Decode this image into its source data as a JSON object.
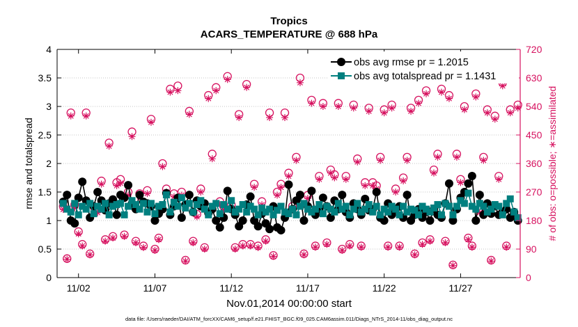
{
  "chart_data": {
    "type": "line",
    "title": "Tropics",
    "subtitle": "ACARS_TEMPERATURE @ 688 hPa",
    "xlabel": "Nov.01,2014 00:00:00 start",
    "ylabel": "rmse and totalspread",
    "y2label": "# of obs: o=possible; ∗=assimilated",
    "footer": "data file: /Users/raeder/DAI/ATM_forcXX/CAM6_setup/f.e21.FHIST_BGC.f09_025.CAM6assim.011/Diags_NTrS_2014-11/obs_diag_output.nc",
    "xlim": [
      0.6,
      30.9
    ],
    "ylim": [
      0,
      4
    ],
    "y2lim": [
      0,
      720
    ],
    "x_ticks": [
      2,
      7,
      12,
      17,
      22,
      27
    ],
    "x_tick_labels": [
      "11/02",
      "11/07",
      "11/12",
      "11/17",
      "11/22",
      "11/27"
    ],
    "y_ticks": [
      0,
      0.5,
      1,
      1.5,
      2,
      2.5,
      3,
      3.5,
      4
    ],
    "y_tick_labels": [
      "0",
      "0.5",
      "1",
      "1.5",
      "2",
      "2.5",
      "3",
      "3.5",
      "4"
    ],
    "y2_ticks": [
      0,
      90,
      180,
      270,
      360,
      450,
      540,
      630,
      720
    ],
    "y2_tick_labels": [
      "0",
      "90",
      "180",
      "270",
      "360",
      "450",
      "540",
      "630",
      "720"
    ],
    "grid": "horizontal dotted",
    "legend": {
      "position": "top-right",
      "entries": [
        "obs avg rmse pr = 1.2015",
        "obs avg totalspread pr = 1.1431"
      ]
    },
    "colors": {
      "rmse": "#000000",
      "totalspread": "#007f7f",
      "obs": "#d6115f"
    },
    "times": [
      1.0,
      1.25,
      1.5,
      1.75,
      2.0,
      2.25,
      2.5,
      2.75,
      3.0,
      3.25,
      3.5,
      3.75,
      4.0,
      4.25,
      4.5,
      4.75,
      5.0,
      5.25,
      5.5,
      5.75,
      6.0,
      6.25,
      6.5,
      6.75,
      7.0,
      7.25,
      7.5,
      7.75,
      8.0,
      8.25,
      8.5,
      8.75,
      9.0,
      9.25,
      9.5,
      9.75,
      10.0,
      10.25,
      10.5,
      10.75,
      11.0,
      11.25,
      11.5,
      11.75,
      12.0,
      12.25,
      12.5,
      12.75,
      13.0,
      13.25,
      13.5,
      13.75,
      14.0,
      14.25,
      14.5,
      14.75,
      15.0,
      15.25,
      15.5,
      15.75,
      16.0,
      16.25,
      16.5,
      16.75,
      17.0,
      17.25,
      17.5,
      17.75,
      18.0,
      18.25,
      18.5,
      18.75,
      19.0,
      19.25,
      19.5,
      19.75,
      20.0,
      20.25,
      20.5,
      20.75,
      21.0,
      21.25,
      21.5,
      21.75,
      22.0,
      22.25,
      22.5,
      22.75,
      23.0,
      23.25,
      23.5,
      23.75,
      24.0,
      24.25,
      24.5,
      24.75,
      25.0,
      25.25,
      25.5,
      25.75,
      26.0,
      26.25,
      26.5,
      26.75,
      27.0,
      27.25,
      27.5,
      27.75,
      28.0,
      28.25,
      28.5,
      28.75,
      29.0,
      29.25,
      29.5,
      29.75,
      30.0,
      30.25,
      30.5,
      30.75
    ],
    "series": [
      {
        "name": "obs avg rmse pr = 1.2015",
        "axis": "left",
        "values": [
          1.33,
          1.45,
          1.0,
          0.95,
          1.4,
          1.68,
          1.35,
          1.05,
          1.25,
          1.5,
          1.35,
          1.18,
          1.3,
          1.37,
          1.1,
          1.45,
          1.4,
          1.62,
          1.3,
          1.2,
          1.45,
          1.33,
          1.3,
          1.25,
          1.0,
          1.12,
          1.2,
          1.48,
          1.1,
          1.25,
          1.4,
          1.05,
          1.28,
          1.45,
          1.15,
          1.35,
          1.25,
          1.3,
          1.13,
          1.2,
          1.0,
          0.88,
          1.05,
          1.52,
          1.2,
          1.1,
          0.9,
          1.0,
          1.28,
          1.42,
          1.0,
          0.9,
          1.12,
          0.95,
          0.85,
          1.25,
          0.88,
          0.83,
          1.05,
          1.63,
          1.2,
          1.35,
          1.45,
          1.0,
          1.25,
          1.52,
          1.1,
          1.2,
          1.4,
          1.25,
          1.05,
          1.35,
          1.2,
          1.45,
          1.15,
          1.05,
          1.3,
          1.2,
          1.1,
          1.38,
          1.18,
          1.2,
          1.5,
          1.05,
          1.0,
          1.3,
          1.1,
          1.2,
          1.25,
          1.05,
          1.45,
          1.0,
          1.1,
          1.2,
          1.05,
          1.15,
          1.0,
          1.2,
          1.1,
          1.05,
          1.3,
          1.65,
          1.0,
          1.2,
          1.4,
          1.5,
          1.65,
          1.78,
          1.0,
          1.45,
          1.1,
          1.3,
          1.12,
          1.25,
          1.1,
          1.15,
          1.2,
          1.05,
          1.15,
          1.0
        ]
      },
      {
        "name": "obs avg totalspread pr = 1.1431",
        "axis": "left",
        "values": [
          1.3,
          1.2,
          1.15,
          1.3,
          1.1,
          1.25,
          1.2,
          1.3,
          1.12,
          1.25,
          1.2,
          1.3,
          1.1,
          1.25,
          1.28,
          1.3,
          1.1,
          1.25,
          1.35,
          1.28,
          1.2,
          1.3,
          1.15,
          1.3,
          1.12,
          1.25,
          1.28,
          1.45,
          1.15,
          1.32,
          1.25,
          1.4,
          1.22,
          1.3,
          1.15,
          1.28,
          1.35,
          1.2,
          1.1,
          1.25,
          1.3,
          1.12,
          1.28,
          1.2,
          1.35,
          1.15,
          1.2,
          1.28,
          1.15,
          1.25,
          1.2,
          1.1,
          1.22,
          1.15,
          1.2,
          1.1,
          1.18,
          1.25,
          1.15,
          1.12,
          1.2,
          1.1,
          1.25,
          1.3,
          1.2,
          1.15,
          1.2,
          1.28,
          1.12,
          1.25,
          1.2,
          1.15,
          1.3,
          1.2,
          1.25,
          1.1,
          1.2,
          1.3,
          1.15,
          1.2,
          1.28,
          1.15,
          1.25,
          1.1,
          1.2,
          1.15,
          1.25,
          1.2,
          1.1,
          1.25,
          1.15,
          1.2,
          1.18,
          1.1,
          1.25,
          1.2,
          1.15,
          1.22,
          1.28,
          1.1,
          1.3,
          1.25,
          1.1,
          1.25,
          1.35,
          1.3,
          1.48,
          1.25,
          1.2,
          1.3,
          1.25,
          1.15,
          1.2,
          1.28,
          1.25,
          1.1,
          1.3,
          1.38,
          1.15,
          1.05
        ]
      },
      {
        "name": "# of obs possible",
        "axis": "right",
        "values": [
          225,
          60,
          520,
          230,
          145,
          105,
          520,
          75,
          225,
          215,
          305,
          120,
          425,
          130,
          300,
          310,
          135,
          270,
          460,
          115,
          265,
          100,
          275,
          500,
          90,
          125,
          360,
          280,
          595,
          265,
          605,
          270,
          55,
          525,
          115,
          200,
          280,
          95,
          575,
          390,
          600,
          240,
          225,
          635,
          230,
          95,
          515,
          105,
          610,
          105,
          295,
          100,
          240,
          120,
          520,
          70,
          270,
          295,
          520,
          330,
          225,
          380,
          630,
          75,
          260,
          560,
          100,
          320,
          550,
          110,
          340,
          325,
          550,
          90,
          320,
          105,
          545,
          375,
          100,
          300,
          535,
          300,
          290,
          380,
          530,
          100,
          545,
          280,
          100,
          315,
          380,
          535,
          75,
          560,
          110,
          590,
          120,
          340,
          390,
          595,
          115,
          575,
          40,
          390,
          310,
          540,
          125,
          100,
          580,
          215,
          380,
          530,
          55,
          510,
          320,
          615,
          100,
          530,
          200,
          545
        ]
      },
      {
        "name": "# of obs assimilated",
        "axis": "right",
        "values": [
          215,
          58,
          510,
          220,
          138,
          100,
          510,
          72,
          215,
          205,
          295,
          115,
          415,
          125,
          290,
          298,
          130,
          260,
          445,
          110,
          255,
          95,
          265,
          490,
          86,
          120,
          350,
          270,
          585,
          255,
          590,
          260,
          52,
          515,
          110,
          192,
          270,
          90,
          565,
          375,
          590,
          230,
          215,
          625,
          220,
          90,
          505,
          100,
          600,
          100,
          285,
          95,
          230,
          115,
          505,
          67,
          260,
          285,
          505,
          320,
          215,
          370,
          615,
          72,
          250,
          550,
          96,
          310,
          540,
          105,
          330,
          315,
          540,
          86,
          310,
          100,
          535,
          365,
          96,
          290,
          525,
          290,
          280,
          370,
          520,
          96,
          535,
          270,
          96,
          305,
          370,
          525,
          72,
          550,
          105,
          580,
          115,
          330,
          380,
          585,
          110,
          565,
          38,
          380,
          300,
          530,
          120,
          96,
          570,
          205,
          370,
          520,
          52,
          500,
          310,
          605,
          96,
          520,
          195,
          535
        ]
      }
    ]
  }
}
